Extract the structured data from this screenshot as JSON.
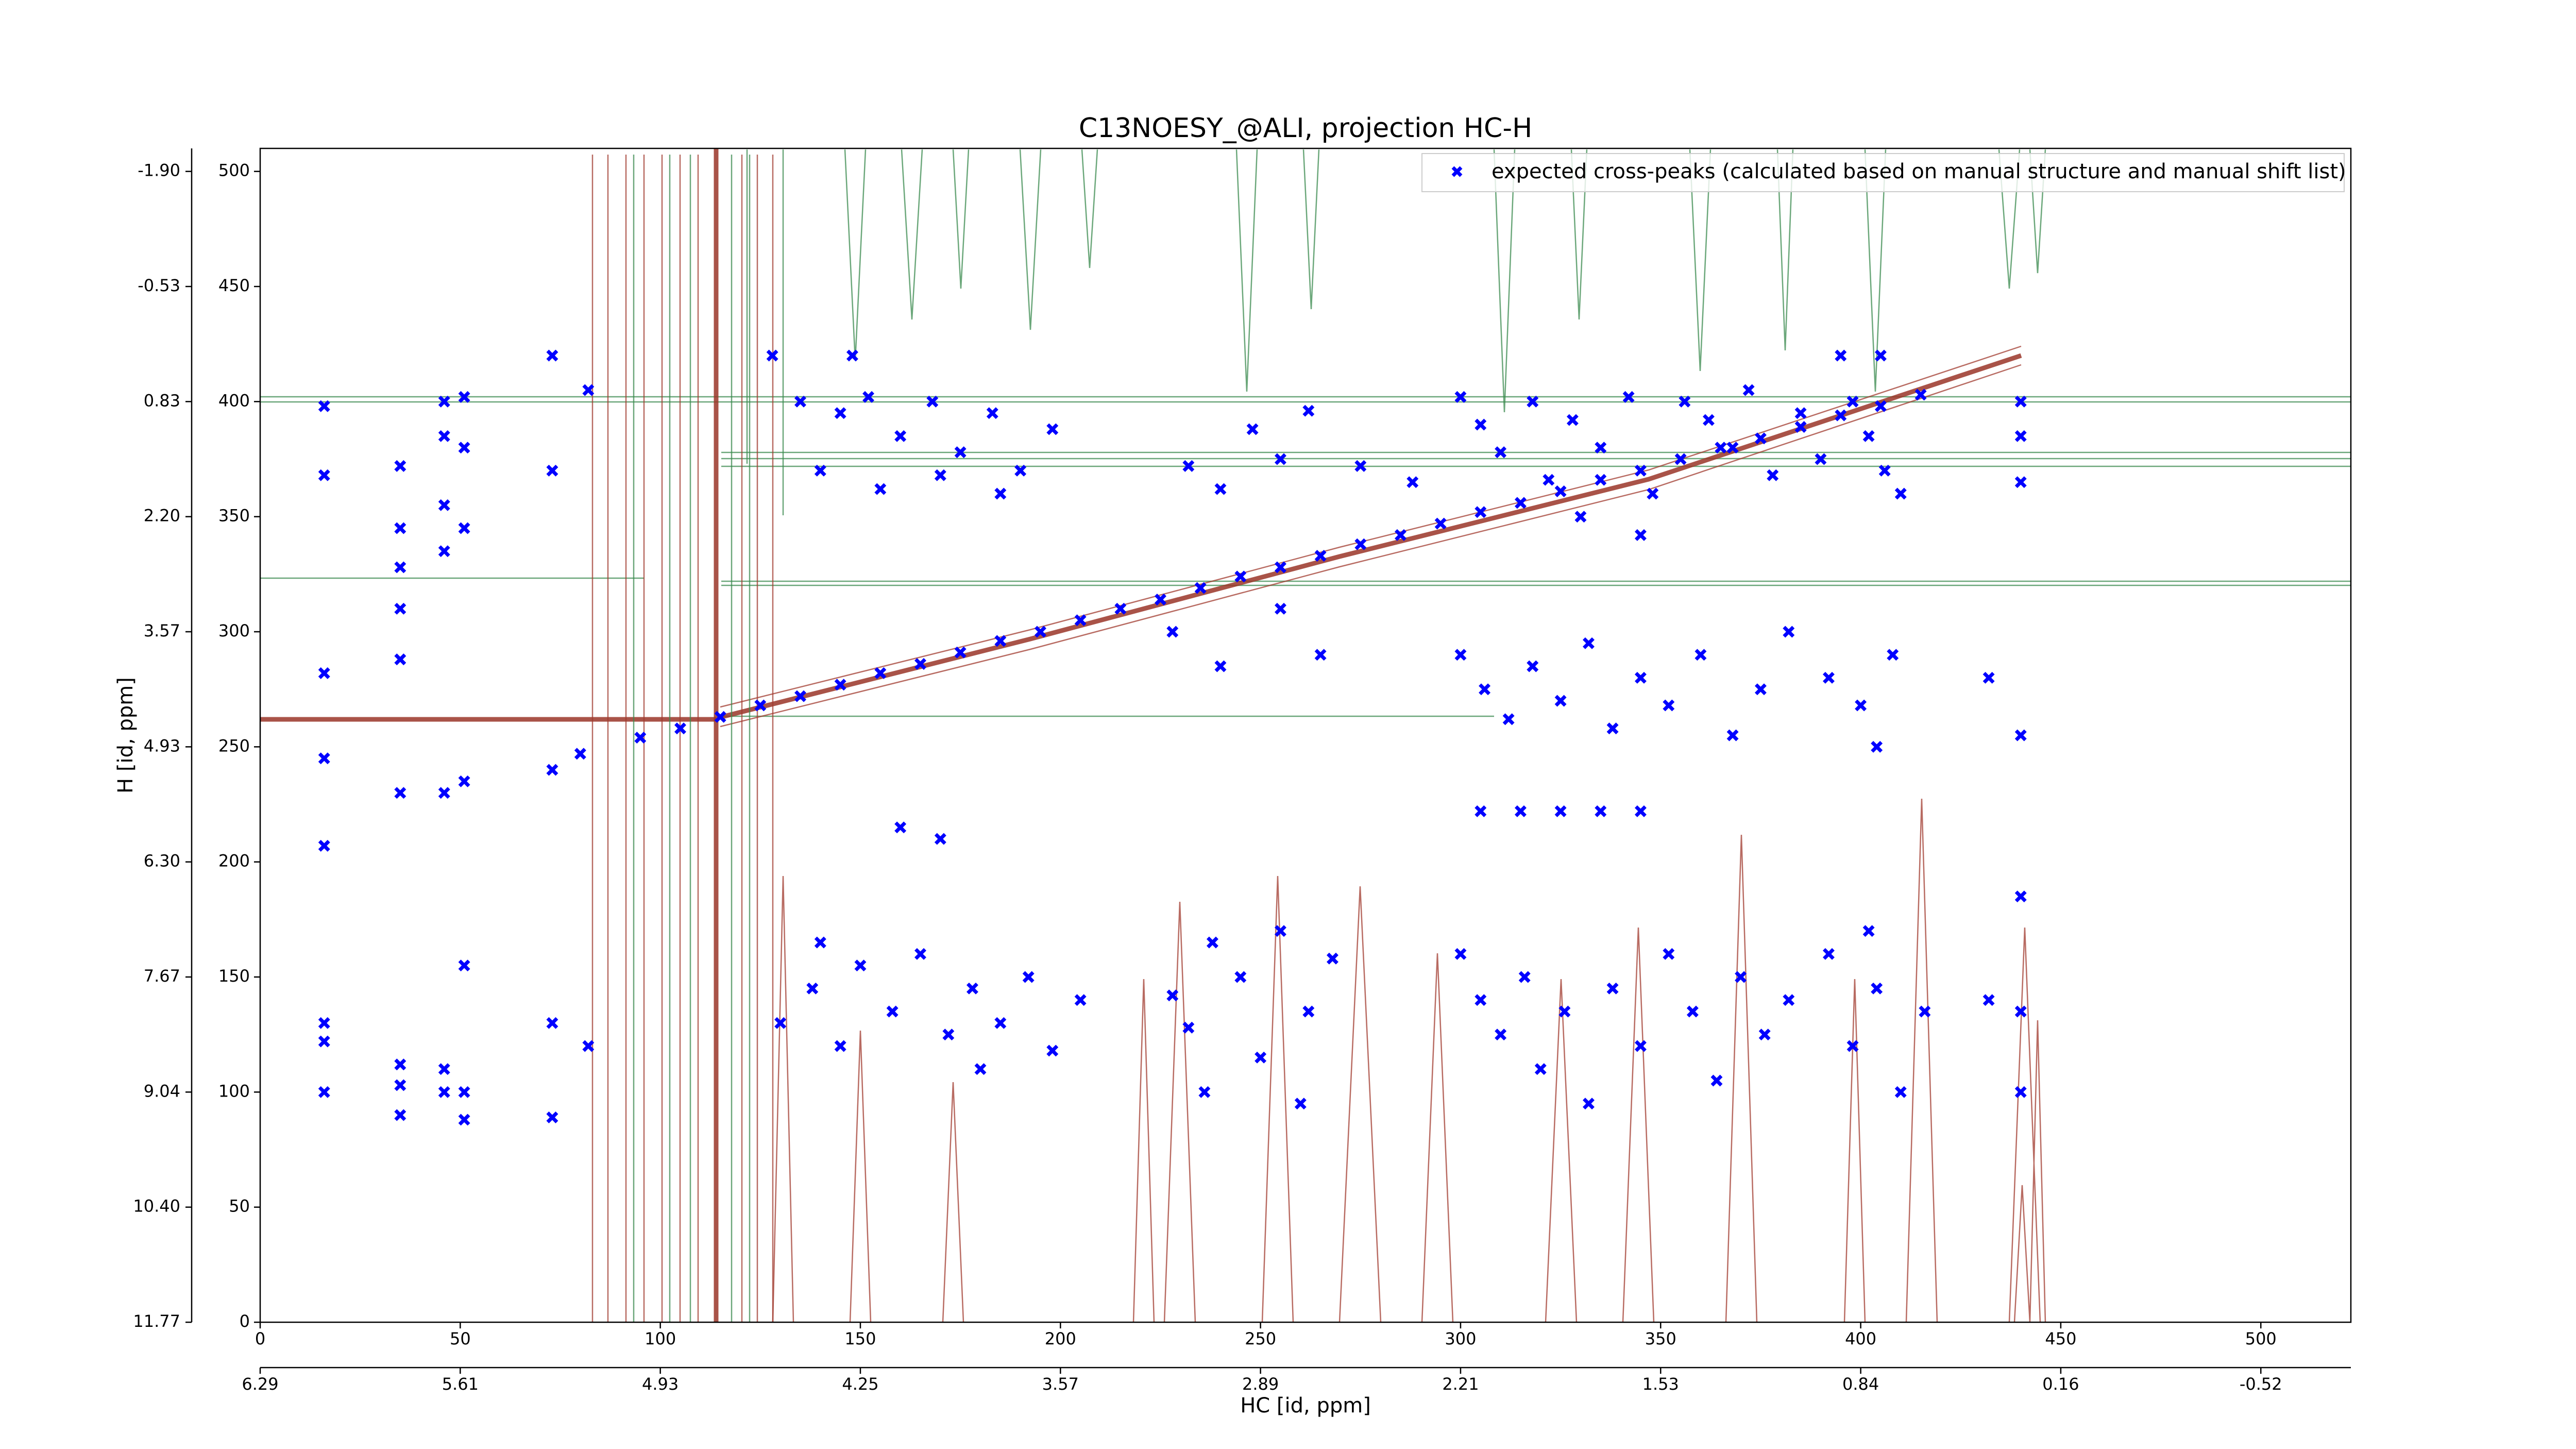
{
  "chart_data": {
    "type": "scatter",
    "title": "C13NOESY_@ALI, projection HC-H",
    "xlabel": "HC [id, ppm]",
    "ylabel": "H [id, ppm]",
    "xlim": [
      0,
      522.5
    ],
    "ylim": [
      0,
      510
    ],
    "xticks": [
      0,
      50,
      100,
      150,
      200,
      250,
      300,
      350,
      400,
      450,
      500
    ],
    "yticks": [
      0,
      50,
      100,
      150,
      200,
      250,
      300,
      350,
      400,
      450,
      500
    ],
    "x2ticks": [
      {
        "value": 0,
        "label": "6.29"
      },
      {
        "value": 50,
        "label": "5.61"
      },
      {
        "value": 100,
        "label": "4.93"
      },
      {
        "value": 150,
        "label": "4.25"
      },
      {
        "value": 200,
        "label": "3.57"
      },
      {
        "value": 250,
        "label": "2.89"
      },
      {
        "value": 300,
        "label": "2.21"
      },
      {
        "value": 350,
        "label": "1.53"
      },
      {
        "value": 400,
        "label": "0.84"
      },
      {
        "value": 450,
        "label": "0.16"
      },
      {
        "value": 500,
        "label": "-0.52"
      }
    ],
    "y2ticks": [
      {
        "value": 0,
        "label": "11.77"
      },
      {
        "value": 50,
        "label": "10.40"
      },
      {
        "value": 100,
        "label": "9.04"
      },
      {
        "value": 150,
        "label": "7.67"
      },
      {
        "value": 200,
        "label": "6.30"
      },
      {
        "value": 250,
        "label": "4.93"
      },
      {
        "value": 300,
        "label": "3.57"
      },
      {
        "value": 350,
        "label": "2.20"
      },
      {
        "value": 400,
        "label": "0.83"
      },
      {
        "value": 450,
        "label": "-0.53"
      },
      {
        "value": 500,
        "label": "-1.90"
      }
    ],
    "legend": "upper right",
    "series": [
      {
        "name": "expected cross-peaks (calculated based on manual structure and manual shift list)",
        "color": "#0000ff",
        "x": [
          16,
          16,
          16,
          16,
          16,
          16,
          16,
          16,
          35,
          35,
          35,
          35,
          35,
          35,
          35,
          35,
          35,
          46,
          46,
          46,
          46,
          46,
          46,
          46,
          51,
          51,
          51,
          51,
          51,
          51,
          51,
          73,
          73,
          73,
          73,
          73,
          82,
          82,
          80,
          95,
          105,
          115,
          125,
          135,
          145,
          155,
          165,
          175,
          185,
          195,
          205,
          215,
          225,
          235,
          245,
          255,
          265,
          275,
          285,
          295,
          305,
          315,
          325,
          335,
          345,
          355,
          365,
          375,
          385,
          395,
          405,
          415,
          135,
          145,
          152,
          160,
          168,
          175,
          183,
          190,
          198,
          140,
          155,
          170,
          185,
          128,
          148,
          300,
          305,
          310,
          318,
          322,
          328,
          335,
          342,
          348,
          356,
          362,
          368,
          372,
          378,
          385,
          390,
          398,
          402,
          406,
          410,
          395,
          405,
          345,
          330,
          232,
          240,
          248,
          255,
          262,
          275,
          288,
          228,
          240,
          255,
          265,
          300,
          306,
          312,
          318,
          325,
          332,
          338,
          345,
          352,
          360,
          368,
          375,
          382,
          392,
          400,
          408,
          404,
          305,
          315,
          325,
          335,
          345,
          160,
          170,
          130,
          138,
          145,
          150,
          158,
          165,
          172,
          178,
          185,
          192,
          198,
          205,
          140,
          180,
          228,
          232,
          238,
          245,
          250,
          255,
          262,
          268,
          236,
          260,
          300,
          305,
          310,
          316,
          320,
          326,
          332,
          338,
          345,
          352,
          358,
          364,
          370,
          376,
          382,
          392,
          398,
          404,
          410,
          416,
          402,
          440,
          440,
          440,
          440,
          440,
          440,
          440,
          432,
          432
        ],
        "values": [
          398,
          368,
          282,
          245,
          207,
          130,
          122,
          100,
          372,
          345,
          328,
          310,
          288,
          230,
          112,
          103,
          90,
          400,
          385,
          355,
          335,
          230,
          110,
          100,
          402,
          380,
          345,
          235,
          155,
          100,
          88,
          420,
          370,
          240,
          130,
          89,
          405,
          120,
          247,
          254,
          258,
          263,
          268,
          272,
          277,
          282,
          286,
          291,
          296,
          300,
          305,
          310,
          314,
          319,
          324,
          328,
          333,
          338,
          342,
          347,
          352,
          356,
          361,
          366,
          370,
          375,
          380,
          384,
          389,
          394,
          398,
          403,
          400,
          395,
          402,
          385,
          400,
          378,
          395,
          370,
          388,
          370,
          362,
          368,
          360,
          420,
          420,
          402,
          390,
          378,
          400,
          366,
          392,
          380,
          402,
          360,
          400,
          392,
          380,
          405,
          368,
          395,
          375,
          400,
          385,
          370,
          360,
          420,
          420,
          342,
          350,
          372,
          362,
          388,
          375,
          396,
          372,
          365,
          300,
          285,
          310,
          290,
          290,
          275,
          262,
          285,
          270,
          295,
          258,
          280,
          268,
          290,
          255,
          275,
          300,
          280,
          268,
          290,
          250,
          222,
          222,
          222,
          222,
          222,
          215,
          210,
          130,
          145,
          120,
          155,
          135,
          160,
          125,
          145,
          130,
          150,
          118,
          140,
          165,
          110,
          142,
          128,
          165,
          150,
          115,
          170,
          135,
          158,
          100,
          95,
          160,
          140,
          125,
          150,
          110,
          135,
          95,
          145,
          120,
          160,
          135,
          105,
          150,
          125,
          140,
          160,
          120,
          145,
          100,
          135,
          170,
          400,
          385,
          365,
          255,
          185,
          135,
          100,
          280,
          140
        ]
      }
    ]
  }
}
